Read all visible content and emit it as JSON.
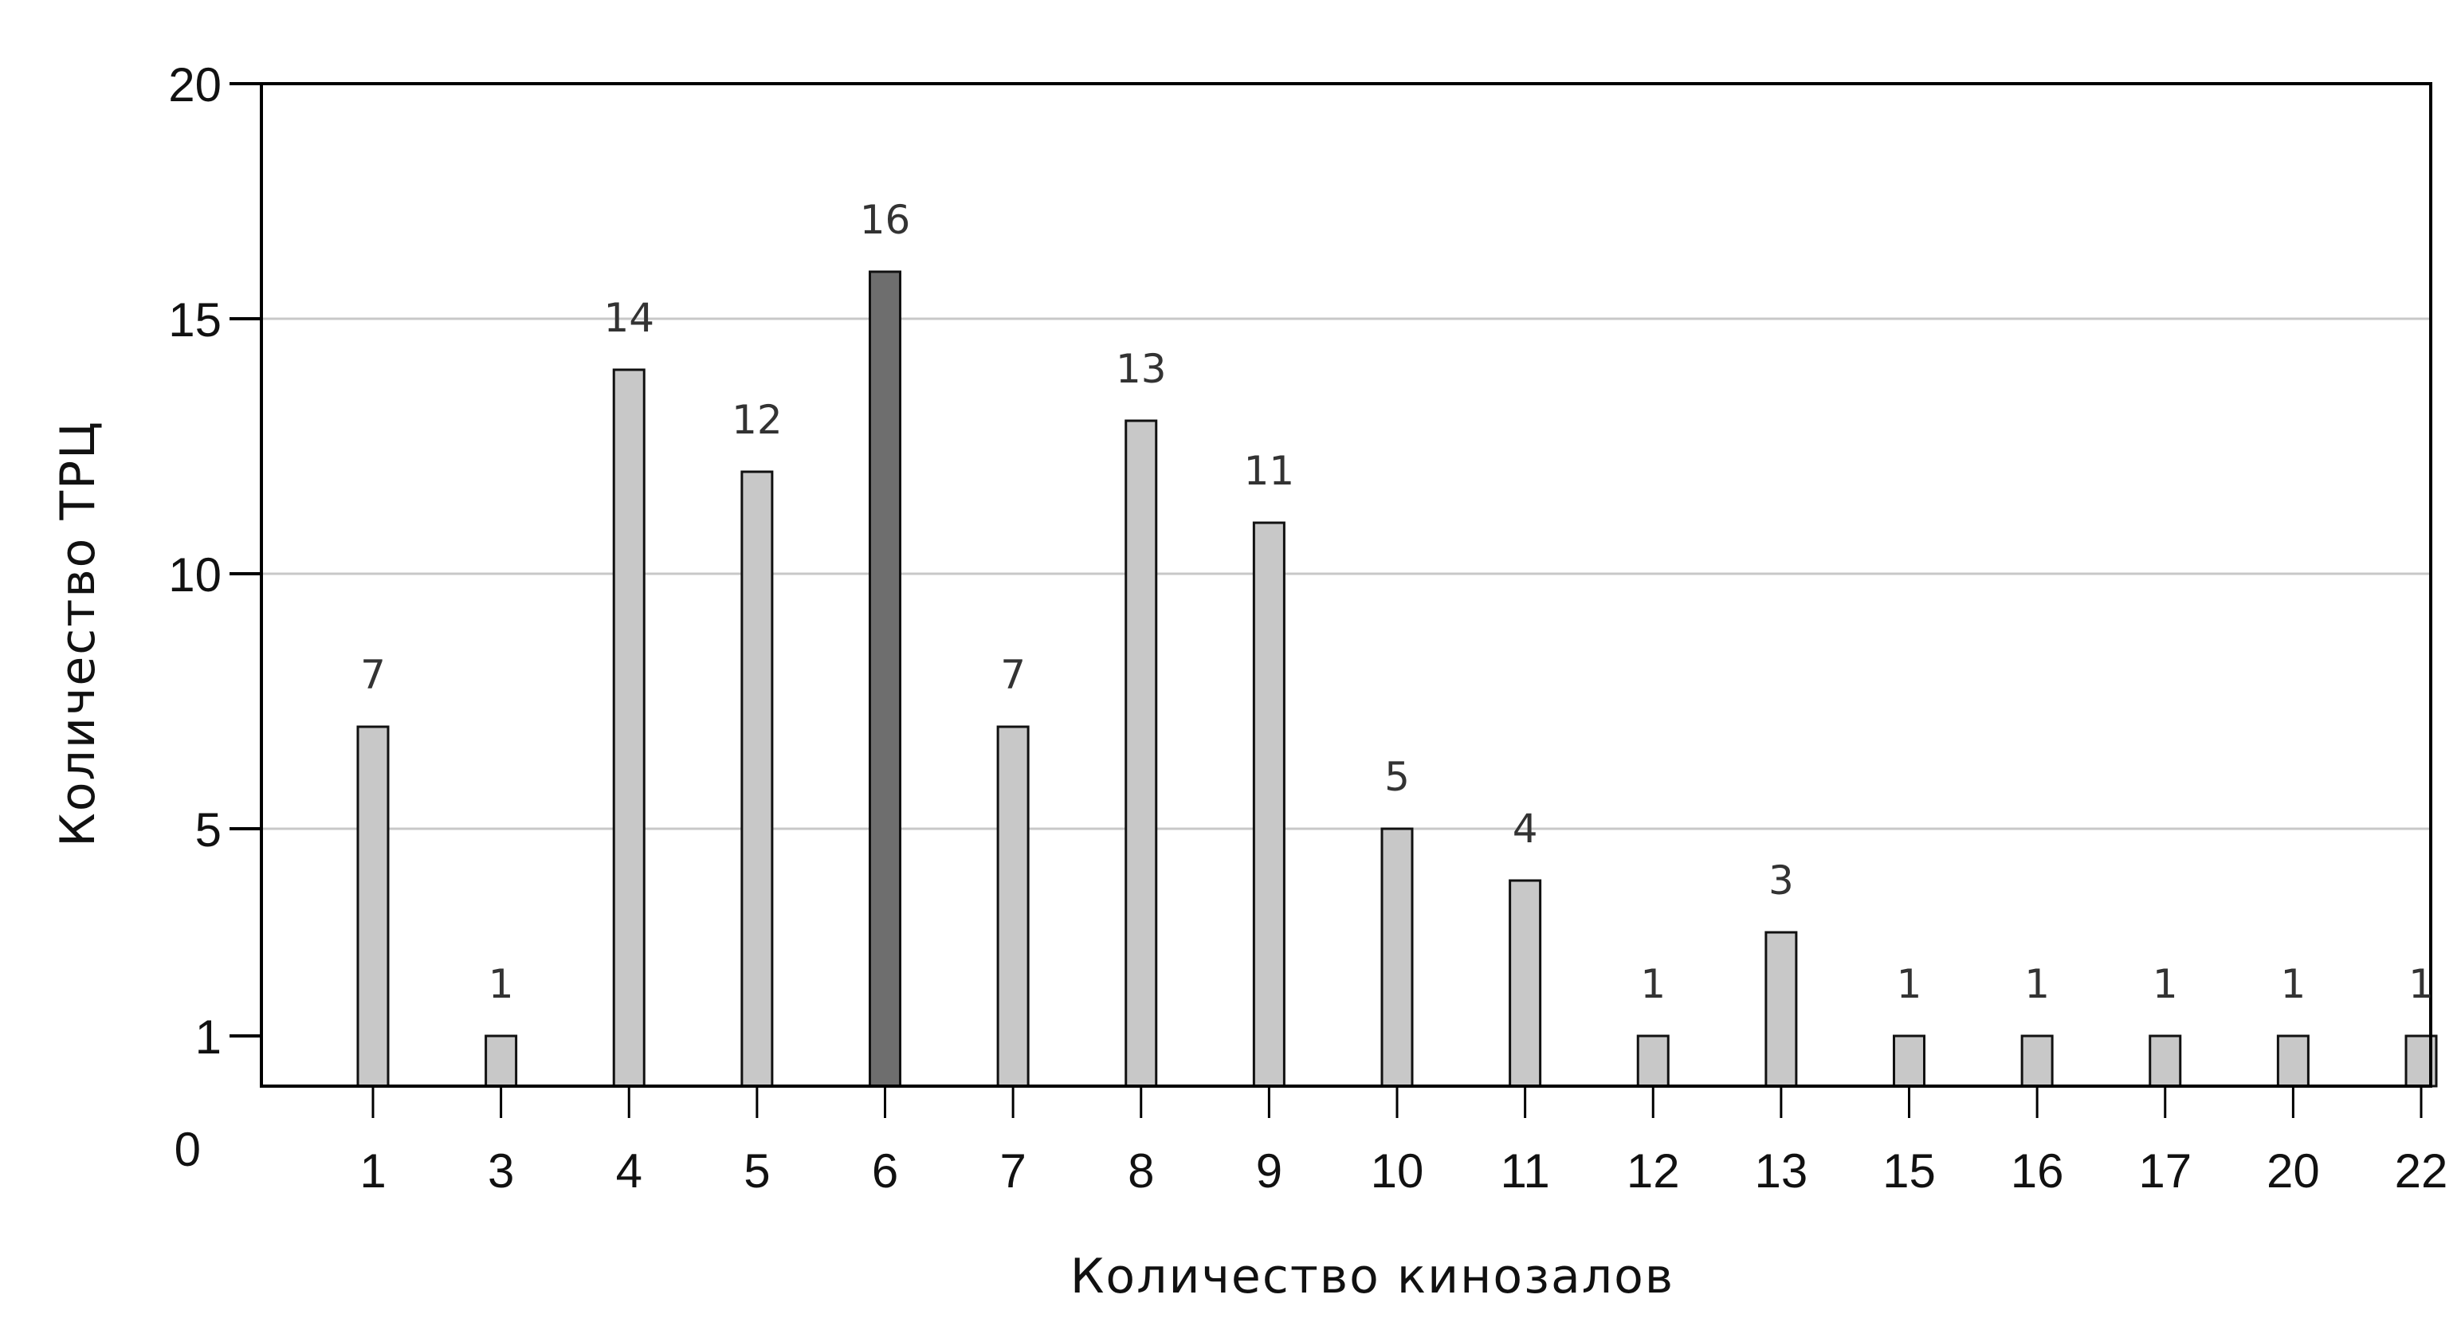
{
  "chart_data": {
    "type": "bar",
    "xlabel": "Количество кинозалов",
    "ylabel": "Количество ТРЦ",
    "categories": [
      "1",
      "3",
      "4",
      "5",
      "6",
      "7",
      "8",
      "9",
      "10",
      "11",
      "12",
      "13",
      "15",
      "16",
      "17",
      "20",
      "22"
    ],
    "values": [
      7,
      1,
      14,
      12,
      16,
      7,
      13,
      11,
      5,
      4,
      1,
      3,
      1,
      1,
      1,
      1,
      1
    ],
    "value_labels": [
      "7",
      "1",
      "14",
      "12",
      "16",
      "7",
      "13",
      "11",
      "5",
      "4",
      "1",
      "3",
      "1",
      "1",
      "1",
      "1",
      "1"
    ],
    "y_ticks": [
      "20",
      "15",
      "10",
      "5",
      "1",
      "0"
    ],
    "ylim": [
      0,
      20
    ],
    "grid": true,
    "highlight_category": "6",
    "colors": {
      "bar": "#c8c8c8",
      "bar_highlight": "#6e6e6e",
      "bar_stroke": "#111111",
      "grid": "#c8c8c8",
      "axis": "#000000"
    }
  }
}
